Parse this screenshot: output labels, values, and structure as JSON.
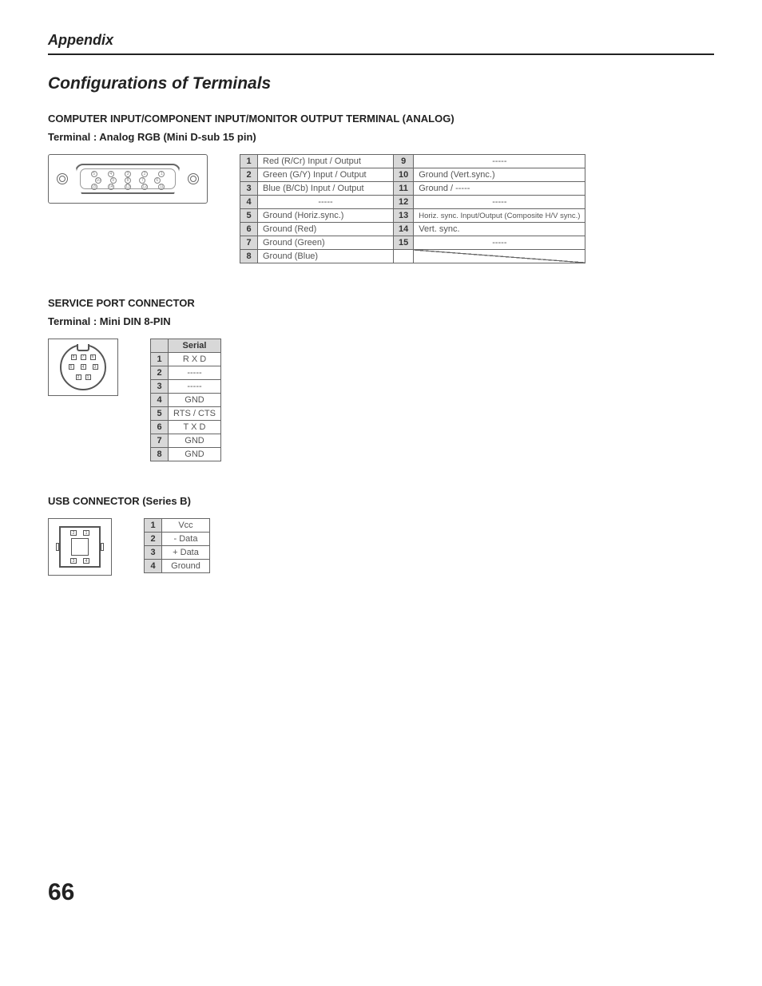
{
  "header": {
    "title": "Appendix"
  },
  "main_heading": "Configurations of Terminals",
  "section1": {
    "heading_line1": "COMPUTER INPUT/COMPONENT INPUT/MONITOR OUTPUT TERMINAL (ANALOG)",
    "heading_line2": "Terminal : Analog RGB (Mini D-sub 15 pin)",
    "pinholes": {
      "row1": [
        "5",
        "4",
        "3",
        "2",
        "1"
      ],
      "row2": [
        "10",
        "9",
        "8",
        "7",
        "6"
      ],
      "row3": [
        "15",
        "14",
        "13",
        "12",
        "11"
      ]
    },
    "table": {
      "left": [
        {
          "n": "1",
          "d": "Red (R/Cr) Input / Output"
        },
        {
          "n": "2",
          "d": "Green (G/Y) Input / Output"
        },
        {
          "n": "3",
          "d": "Blue (B/Cb) Input / Output"
        },
        {
          "n": "4",
          "d": "-----"
        },
        {
          "n": "5",
          "d": "Ground (Horiz.sync.)"
        },
        {
          "n": "6",
          "d": "Ground (Red)"
        },
        {
          "n": "7",
          "d": "Ground (Green)"
        },
        {
          "n": "8",
          "d": "Ground (Blue)"
        }
      ],
      "right": [
        {
          "n": "9",
          "d": "-----"
        },
        {
          "n": "10",
          "d": "Ground (Vert.sync.)"
        },
        {
          "n": "11",
          "d": "Ground /  -----"
        },
        {
          "n": "12",
          "d": "-----"
        },
        {
          "n": "13",
          "d": "Horiz. sync. Input/Output (Composite H/V sync.)",
          "small": true
        },
        {
          "n": "14",
          "d": "Vert. sync."
        },
        {
          "n": "15",
          "d": "-----"
        }
      ]
    }
  },
  "section2": {
    "heading_line1": "SERVICE PORT CONNECTOR",
    "heading_line2": "Terminal : Mini DIN 8-PIN",
    "din_pins": {
      "r1": [
        "8",
        "7",
        "6"
      ],
      "r2": [
        "5",
        "4",
        "3"
      ],
      "r3": [
        "2",
        "1"
      ]
    },
    "table": {
      "header": "Serial",
      "rows": [
        {
          "n": "1",
          "d": "R X D"
        },
        {
          "n": "2",
          "d": "-----"
        },
        {
          "n": "3",
          "d": "-----"
        },
        {
          "n": "4",
          "d": "GND"
        },
        {
          "n": "5",
          "d": "RTS / CTS"
        },
        {
          "n": "6",
          "d": "T X D"
        },
        {
          "n": "7",
          "d": "GND"
        },
        {
          "n": "8",
          "d": "GND"
        }
      ]
    }
  },
  "section3": {
    "heading": "USB CONNECTOR (Series B)",
    "usb_pins": {
      "top": [
        "2",
        "1"
      ],
      "bot": [
        "3",
        "4"
      ]
    },
    "table": {
      "rows": [
        {
          "n": "1",
          "d": "Vcc"
        },
        {
          "n": "2",
          "d": "- Data"
        },
        {
          "n": "3",
          "d": "+ Data"
        },
        {
          "n": "4",
          "d": "Ground"
        }
      ]
    }
  },
  "page_number": "66",
  "colors": {
    "text": "#333333",
    "border": "#666666",
    "cell_bg": "#d8d8d8",
    "background": "#ffffff"
  }
}
